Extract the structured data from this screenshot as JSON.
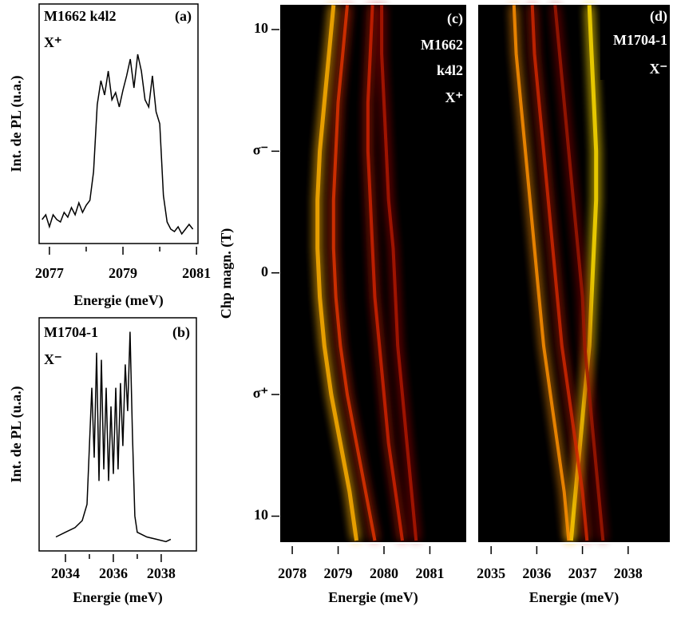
{
  "chart_data": [
    {
      "type": "line",
      "title": "M1662 k4l2",
      "label": "(a)",
      "annotation": "X⁺",
      "x": [
        2076.8,
        2076.9,
        2077,
        2077.1,
        2077.2,
        2077.3,
        2077.4,
        2077.5,
        2077.6,
        2077.7,
        2077.8,
        2077.9,
        2078,
        2078.1,
        2078.2,
        2078.3,
        2078.4,
        2078.5,
        2078.6,
        2078.7,
        2078.8,
        2078.9,
        2079,
        2079.1,
        2079.2,
        2079.3,
        2079.4,
        2079.5,
        2079.6,
        2079.7,
        2079.8,
        2079.9,
        2080,
        2080.1,
        2080.2,
        2080.3,
        2080.4,
        2080.5,
        2080.6,
        2080.7,
        2080.8,
        2080.9
      ],
      "values": [
        0.1,
        0.12,
        0.07,
        0.12,
        0.1,
        0.09,
        0.13,
        0.11,
        0.15,
        0.12,
        0.17,
        0.13,
        0.16,
        0.18,
        0.3,
        0.58,
        0.68,
        0.62,
        0.72,
        0.6,
        0.63,
        0.57,
        0.64,
        0.7,
        0.77,
        0.65,
        0.79,
        0.72,
        0.6,
        0.57,
        0.7,
        0.55,
        0.5,
        0.2,
        0.09,
        0.06,
        0.05,
        0.07,
        0.04,
        0.06,
        0.08,
        0.06
      ],
      "color": "#000000",
      "xlim": [
        2076.72,
        2081.04
      ],
      "xticks": [
        2077,
        2079,
        2081
      ],
      "xminorticks": [
        2078,
        2080
      ],
      "ylim": [
        0,
        1
      ],
      "xlabel": "Energie (meV)",
      "ylabel": "Int. de PL (u.a.)"
    },
    {
      "type": "line",
      "title": "M1704-1",
      "label": "(b)",
      "annotation": "X⁻",
      "x": [
        2033.6,
        2034.0,
        2034.4,
        2034.7,
        2034.9,
        2035.0,
        2035.1,
        2035.2,
        2035.3,
        2035.4,
        2035.5,
        2035.6,
        2035.7,
        2035.8,
        2035.9,
        2036.0,
        2036.1,
        2036.2,
        2036.3,
        2036.4,
        2036.5,
        2036.6,
        2036.7,
        2036.8,
        2036.9,
        2037.0,
        2037.4,
        2037.8,
        2038.2,
        2038.4
      ],
      "values": [
        0.06,
        0.08,
        0.1,
        0.13,
        0.2,
        0.45,
        0.7,
        0.4,
        0.85,
        0.3,
        0.82,
        0.35,
        0.7,
        0.3,
        0.62,
        0.33,
        0.7,
        0.35,
        0.72,
        0.45,
        0.8,
        0.6,
        0.94,
        0.5,
        0.15,
        0.08,
        0.06,
        0.05,
        0.04,
        0.05
      ],
      "color": "#000000",
      "xlim": [
        2032.9,
        2039.47
      ],
      "xticks": [
        2034,
        2036,
        2038
      ],
      "xminorticks": [
        2035,
        2037
      ],
      "ylim": [
        0,
        1
      ],
      "xlabel": "Energie (meV)",
      "ylabel": "Int. de PL (u.a.)"
    },
    {
      "type": "heatmap",
      "title": [
        "M1662",
        "k4l2"
      ],
      "label": "(c)",
      "annotation": "X⁺",
      "background": "#000000",
      "y": [
        11,
        9,
        7,
        5,
        3,
        1,
        -1,
        -3,
        -5,
        -7,
        -9,
        -11
      ],
      "series": [
        {
          "color": "#ffb000",
          "values": [
            2078.9,
            2078.8,
            2078.7,
            2078.6,
            2078.55,
            2078.55,
            2078.6,
            2078.7,
            2078.85,
            2079.05,
            2079.25,
            2079.4
          ]
        },
        {
          "color": "#e03000",
          "values": [
            2079.2,
            2079.1,
            2079.0,
            2078.95,
            2078.9,
            2078.9,
            2078.95,
            2079.05,
            2079.2,
            2079.4,
            2079.6,
            2079.8
          ]
        },
        {
          "color": "#d02000",
          "values": [
            2079.75,
            2079.7,
            2079.65,
            2079.65,
            2079.7,
            2079.75,
            2079.8,
            2079.9,
            2080.0,
            2080.1,
            2080.25,
            2080.4
          ]
        },
        {
          "color": "#b01800",
          "values": [
            2079.95,
            2079.95,
            2080.0,
            2080.05,
            2080.1,
            2080.2,
            2080.25,
            2080.3,
            2080.4,
            2080.5,
            2080.6,
            2080.7
          ]
        }
      ],
      "xlim": [
        2077.72,
        2081.81
      ],
      "xticks": [
        2078,
        2079,
        2080,
        2081
      ],
      "ylim": [
        -11.1,
        11.05
      ],
      "yticks": [
        10,
        {
          "value": 5,
          "label": "σ⁻"
        },
        0,
        {
          "value": -5,
          "label": "σ⁺"
        },
        {
          "value": -10,
          "label": "10"
        }
      ],
      "xlabel": "Energie (meV)",
      "ylabel": "Chp magn. (T)"
    },
    {
      "type": "heatmap",
      "title": [
        "M1704-1"
      ],
      "label": "(d)",
      "annotation": "X⁻",
      "background": "#000000",
      "y": [
        11,
        9,
        7,
        5,
        3,
        1,
        -1,
        -3,
        -5,
        -7,
        -9,
        -11
      ],
      "series": [
        {
          "color": "#ffdd00",
          "values": [
            2037.15,
            2037.2,
            2037.25,
            2037.3,
            2037.3,
            2037.25,
            2037.2,
            2037.15,
            2037.05,
            2036.95,
            2036.85,
            2036.75
          ]
        },
        {
          "color": "#ff9000",
          "values": [
            2035.5,
            2035.55,
            2035.65,
            2035.75,
            2035.85,
            2035.95,
            2036.05,
            2036.15,
            2036.3,
            2036.45,
            2036.6,
            2036.7
          ]
        },
        {
          "color": "#d02800",
          "values": [
            2035.9,
            2035.95,
            2036.05,
            2036.15,
            2036.25,
            2036.35,
            2036.45,
            2036.55,
            2036.7,
            2036.85,
            2037.0,
            2037.1
          ]
        },
        {
          "color": "#a01800",
          "values": [
            2036.4,
            2036.5,
            2036.6,
            2036.7,
            2036.8,
            2036.9,
            2037.0,
            2037.05,
            2037.15,
            2037.25,
            2037.35,
            2037.45
          ]
        }
      ],
      "xlim": [
        2034.7,
        2038.93
      ],
      "xticks": [
        2035,
        2036,
        2037,
        2038
      ],
      "ylim": [
        -11.1,
        11.05
      ],
      "xlabel": "Energie (meV)"
    }
  ]
}
